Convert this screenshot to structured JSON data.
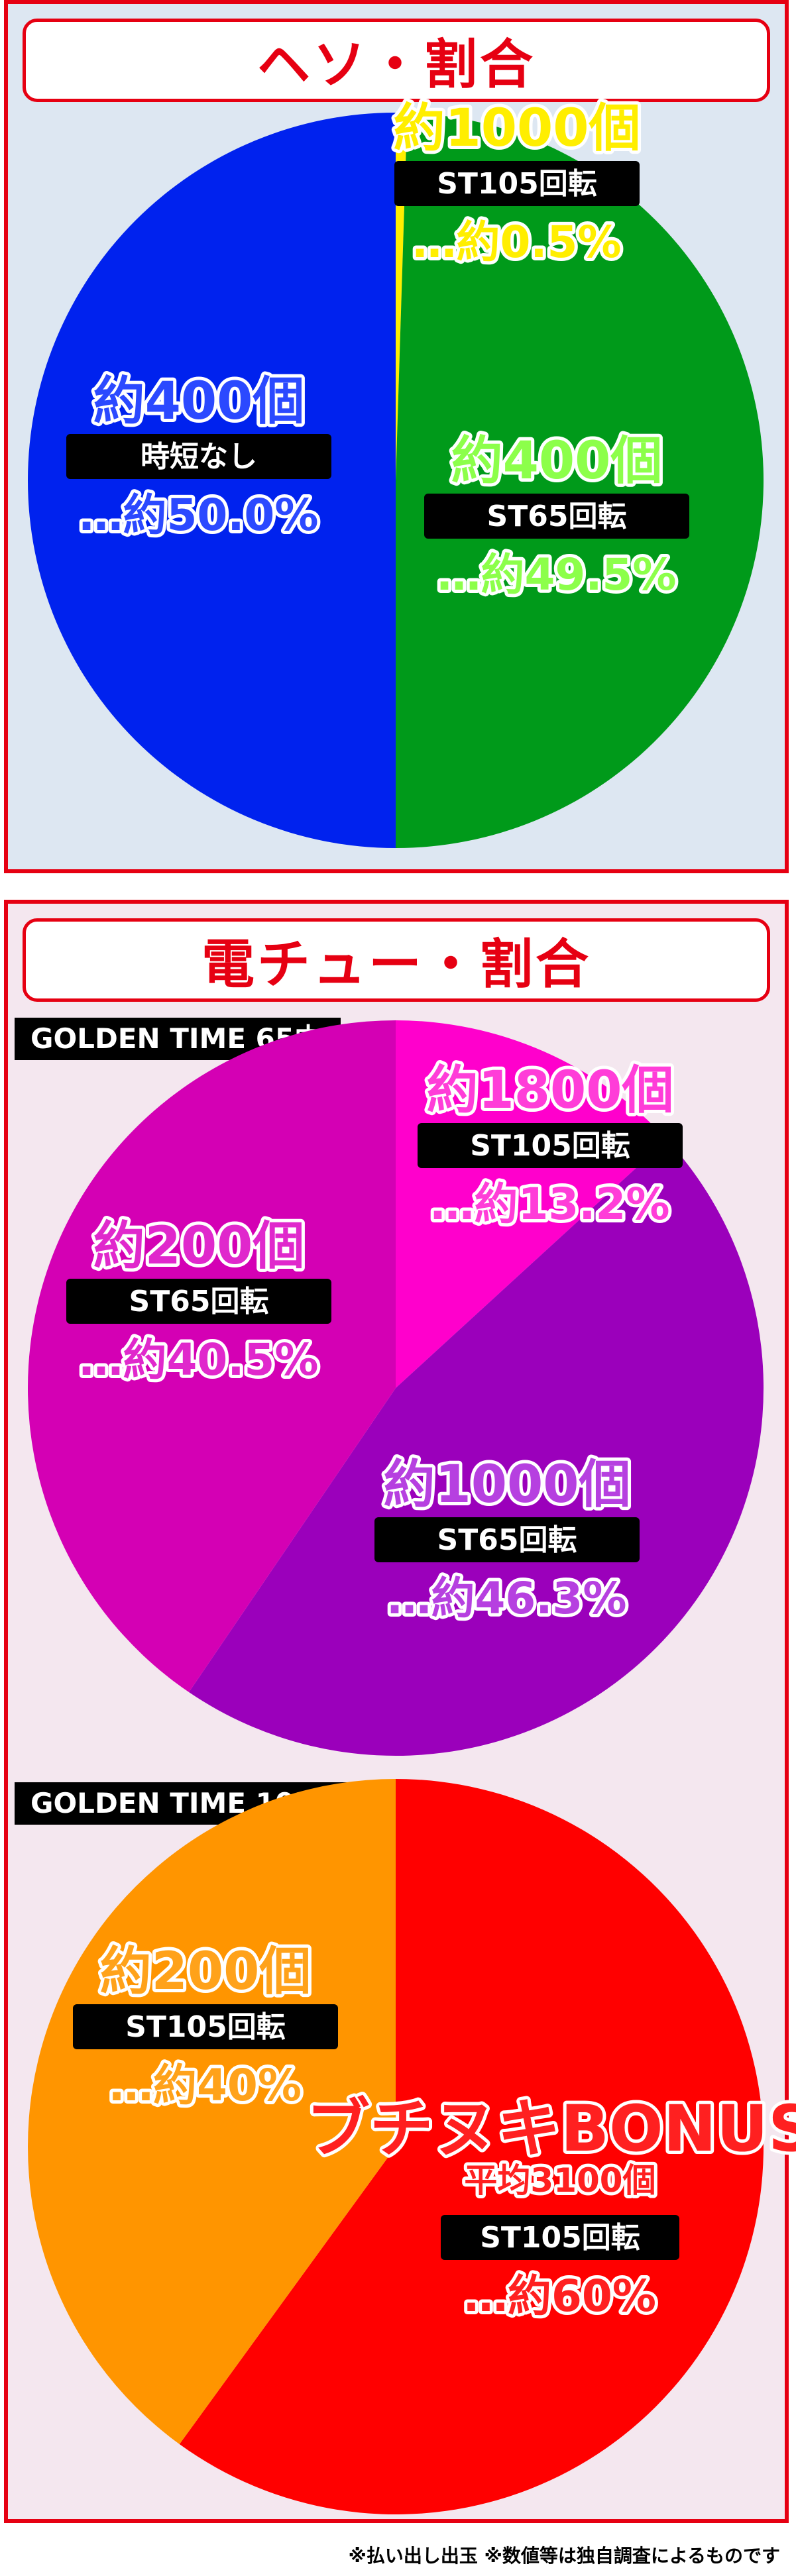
{
  "panels": {
    "heso": {
      "title": "ヘソ・割合"
    },
    "denchu": {
      "title": "電チュー・割合"
    }
  },
  "footnote": "※払い出し出玉 ※数値等は独自調査によるものです",
  "chart_data": [
    {
      "type": "pie",
      "slices": [
        {
          "balls": "約1000個",
          "mode": "ST105回転",
          "rate": "…約0.5%",
          "value": 0.5,
          "color": "#ffee00",
          "label_color": "#ffee00"
        },
        {
          "balls": "約400個",
          "mode": "ST65回転",
          "rate": "…約49.5%",
          "value": 49.5,
          "color": "#009a1a",
          "label_color": "#8cff4a"
        },
        {
          "balls": "約400個",
          "mode": "時短なし",
          "rate": "…約50.0%",
          "value": 50.0,
          "color": "#0022ee",
          "label_color": "#2b49ff"
        }
      ]
    },
    {
      "type": "pie",
      "title": "GOLDEN TIME 65中",
      "slices": [
        {
          "balls": "約1800個",
          "mode": "ST105回転",
          "rate": "…約13.2%",
          "value": 13.2,
          "color": "#ff00cc",
          "label_color": "#ff3dd8"
        },
        {
          "balls": "約1000個",
          "mode": "ST65回転",
          "rate": "…約46.3%",
          "value": 46.3,
          "color": "#9b00bb",
          "label_color": "#b640e0"
        },
        {
          "balls": "約200個",
          "mode": "ST65回転",
          "rate": "…約40.5%",
          "value": 40.5,
          "color": "#d400b4",
          "label_color": "#e028cc"
        }
      ]
    },
    {
      "type": "pie",
      "title": "GOLDEN TIME 105中",
      "slices": [
        {
          "balls": "平均3100個",
          "heading": "ブチヌキBONUS",
          "mode": "ST105回転",
          "rate": "…約60%",
          "value": 60,
          "color": "#ff0000",
          "label_color": "#ff2020"
        },
        {
          "balls": "約200個",
          "mode": "ST105回転",
          "rate": "…約40%",
          "value": 40,
          "color": "#ff9500",
          "label_color": "#ffa21a"
        }
      ]
    }
  ]
}
